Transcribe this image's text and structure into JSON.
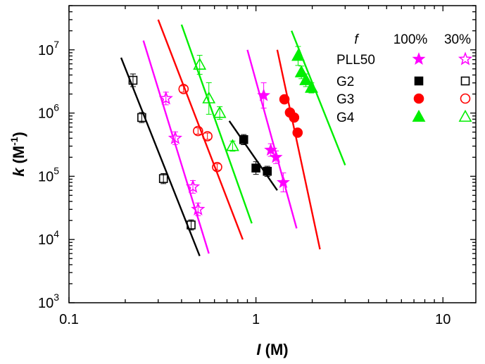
{
  "chart_data": {
    "type": "scatter",
    "xscale": "log",
    "yscale": "log",
    "xlim": [
      0.1,
      15
    ],
    "ylim": [
      1000,
      50000000
    ],
    "xticks": [
      {
        "value": 0.1,
        "label": "0.1"
      },
      {
        "value": 1,
        "label": "1"
      },
      {
        "value": 10,
        "label": "10"
      }
    ],
    "yticks": [
      {
        "value": 1000,
        "mant": "10",
        "exp": "3"
      },
      {
        "value": 10000,
        "mant": "10",
        "exp": "4"
      },
      {
        "value": 100000,
        "mant": "10",
        "exp": "5"
      },
      {
        "value": 1000000,
        "mant": "10",
        "exp": "6"
      },
      {
        "value": 10000000,
        "mant": "10",
        "exp": "7"
      }
    ],
    "xlabel": {
      "italic": "I",
      "rest": " (M)"
    },
    "ylabel": {
      "italic": "k",
      "rest": " (M",
      "sup": "-1",
      "close": ")"
    },
    "legend": {
      "f_label": "f",
      "col_100": "100%",
      "col_30": "30%",
      "rows": [
        "PLL50",
        "G2",
        "G3",
        "G4"
      ]
    },
    "series": [
      {
        "name": "PLL50",
        "f": "100%",
        "color": "#ff00ff",
        "marker": "star",
        "filled": true,
        "points": [
          [
            1.1,
            1900000
          ],
          [
            1.2,
            260000
          ],
          [
            1.28,
            200000
          ],
          [
            1.4,
            80000
          ]
        ],
        "errors": [
          0.2,
          0.1,
          0.1,
          0.15
        ],
        "fit": [
          [
            0.9,
            10000000
          ],
          [
            1.65,
            15000
          ]
        ]
      },
      {
        "name": "PLL50",
        "f": "30%",
        "color": "#ff00ff",
        "marker": "star",
        "filled": false,
        "points": [
          [
            0.33,
            1700000
          ],
          [
            0.37,
            400000
          ],
          [
            0.46,
            68000
          ],
          [
            0.49,
            30000
          ]
        ],
        "errors": [
          0.1,
          0.1,
          0.1,
          0.1
        ],
        "fit": [
          [
            0.25,
            14000000
          ],
          [
            0.56,
            6000
          ]
        ]
      },
      {
        "name": "G2",
        "f": "100%",
        "color": "#000000",
        "marker": "square",
        "filled": true,
        "points": [
          [
            0.86,
            380000
          ],
          [
            1.0,
            135000
          ],
          [
            1.15,
            120000
          ]
        ],
        "errors": [
          0.08,
          0.1,
          0.08
        ],
        "fit": [
          [
            0.72,
            750000
          ],
          [
            1.3,
            60000
          ]
        ]
      },
      {
        "name": "G2",
        "f": "30%",
        "color": "#000000",
        "marker": "square",
        "filled": false,
        "points": [
          [
            0.22,
            3300000
          ],
          [
            0.245,
            850000
          ],
          [
            0.32,
            92000
          ],
          [
            0.45,
            17000
          ]
        ],
        "errors": [
          0.1,
          0.08,
          0.08,
          0.08
        ],
        "fit": [
          [
            0.19,
            7500000
          ],
          [
            0.5,
            5500
          ]
        ]
      },
      {
        "name": "G3",
        "f": "100%",
        "color": "#ff0000",
        "marker": "circle",
        "filled": true,
        "points": [
          [
            1.42,
            1650000
          ],
          [
            1.52,
            1020000
          ],
          [
            1.6,
            850000
          ],
          [
            1.67,
            490000
          ]
        ],
        "errors": [
          0.05,
          0.05,
          0.05,
          0.05
        ],
        "fit": [
          [
            1.3,
            10000000
          ],
          [
            2.2,
            7000
          ]
        ]
      },
      {
        "name": "G3",
        "f": "30%",
        "color": "#ff0000",
        "marker": "circle",
        "filled": false,
        "points": [
          [
            0.41,
            2400000
          ],
          [
            0.49,
            520000
          ],
          [
            0.55,
            430000
          ],
          [
            0.62,
            140000
          ]
        ],
        "errors": [
          0.05,
          0.05,
          0.05,
          0.05
        ],
        "fit": [
          [
            0.3,
            30000000
          ],
          [
            0.85,
            10000
          ]
        ]
      },
      {
        "name": "G4",
        "f": "100%",
        "color": "#00ee00",
        "marker": "triangle",
        "filled": true,
        "points": [
          [
            1.68,
            8000000
          ],
          [
            1.75,
            4400000
          ],
          [
            1.85,
            3300000
          ],
          [
            1.98,
            2500000
          ]
        ],
        "errors": [
          0.15,
          0.1,
          0.1,
          0.08
        ],
        "fit": [
          [
            1.55,
            20000000
          ],
          [
            3.0,
            150000
          ]
        ]
      },
      {
        "name": "G4",
        "f": "30%",
        "color": "#00ee00",
        "marker": "triangle",
        "filled": false,
        "points": [
          [
            0.5,
            5800000
          ],
          [
            0.56,
            1700000
          ],
          [
            0.64,
            1000000
          ],
          [
            0.75,
            300000
          ]
        ],
        "errors": [
          0.15,
          0.25,
          0.1,
          0.08
        ],
        "fit": [
          [
            0.4,
            25000000
          ],
          [
            0.95,
            18000
          ]
        ]
      }
    ]
  }
}
